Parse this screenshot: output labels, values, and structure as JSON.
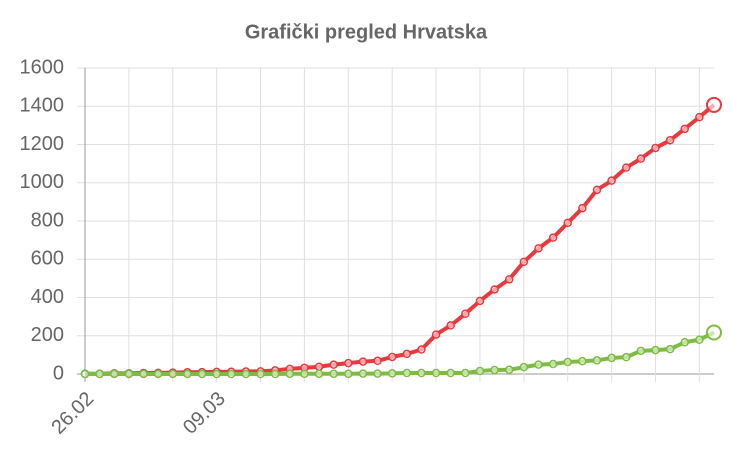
{
  "chart_data": {
    "type": "line",
    "title": "Grafički pregled Hrvatska",
    "categories": [
      "26.02",
      null,
      null,
      null,
      null,
      null,
      null,
      null,
      null,
      "09.03",
      null,
      null,
      null,
      null,
      null,
      null,
      null,
      null,
      null,
      null,
      null,
      null,
      null,
      null,
      null,
      null,
      null,
      null,
      null,
      null,
      null,
      null,
      null,
      null,
      null,
      null,
      null,
      null,
      null,
      null,
      null,
      null,
      null,
      null
    ],
    "series": [
      {
        "color": "#e8393e",
        "values": [
          1,
          1,
          3,
          3,
          5,
          6,
          7,
          9,
          10,
          11,
          12,
          13,
          14,
          19,
          27,
          32,
          38,
          49,
          57,
          65,
          69,
          89,
          105,
          128,
          206,
          254,
          315,
          382,
          442,
          495,
          586,
          657,
          713,
          790,
          867,
          963,
          1011,
          1079,
          1126,
          1182,
          1222,
          1282,
          1343,
          1407
        ]
      },
      {
        "color": "#7dbb42",
        "values": [
          0,
          0,
          0,
          0,
          0,
          0,
          0,
          0,
          0,
          0,
          0,
          0,
          0,
          0,
          1,
          1,
          1,
          1,
          1,
          2,
          2,
          3,
          5,
          5,
          5,
          5,
          5,
          16,
          21,
          22,
          36,
          49,
          52,
          63,
          67,
          71,
          84,
          88,
          121,
          125,
          130,
          166,
          179,
          217
        ]
      }
    ],
    "ylim": [
      0,
      1600
    ],
    "yticks": [
      0,
      200,
      400,
      600,
      800,
      1000,
      1200,
      1400,
      1600
    ],
    "grid": true
  }
}
